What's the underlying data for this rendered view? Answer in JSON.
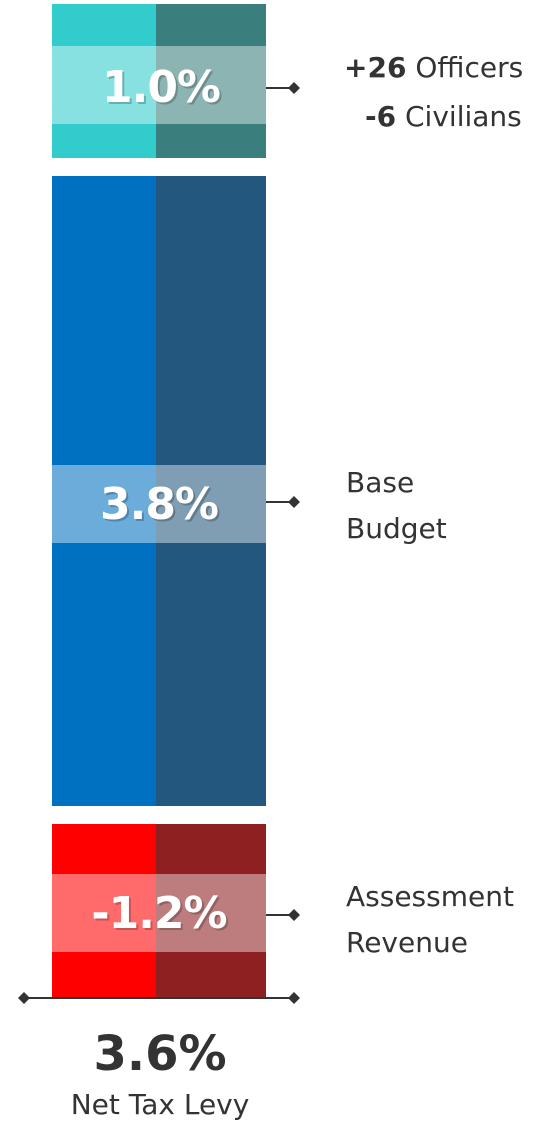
{
  "chart_data": {
    "type": "bar",
    "stacked": true,
    "segments": [
      {
        "label": "+26 Officers / -6 Civilians",
        "value": 1.0,
        "display": "1.0%",
        "colors": {
          "light": "#33cccc",
          "dark": "#3a7f7d"
        }
      },
      {
        "label": "Base Budget",
        "value": 3.8,
        "display": "3.8%",
        "colors": {
          "light": "#0070c0",
          "dark": "#24577d"
        }
      },
      {
        "label": "Assessment Revenue",
        "value": -1.2,
        "display": "-1.2%",
        "colors": {
          "light": "#ff0000",
          "dark": "#8e2021"
        }
      }
    ],
    "total": {
      "value": 3.6,
      "display": "3.6%",
      "label": "Net Tax Levy"
    }
  },
  "labels": {
    "officers_num": "+26",
    "officers_text": " Officers",
    "civilians_num": "-6",
    "civilians_text": " Civilians",
    "base_line1": "Base",
    "base_line2": "Budget",
    "assess_line1": "Assessment",
    "assess_line2": "Revenue"
  }
}
